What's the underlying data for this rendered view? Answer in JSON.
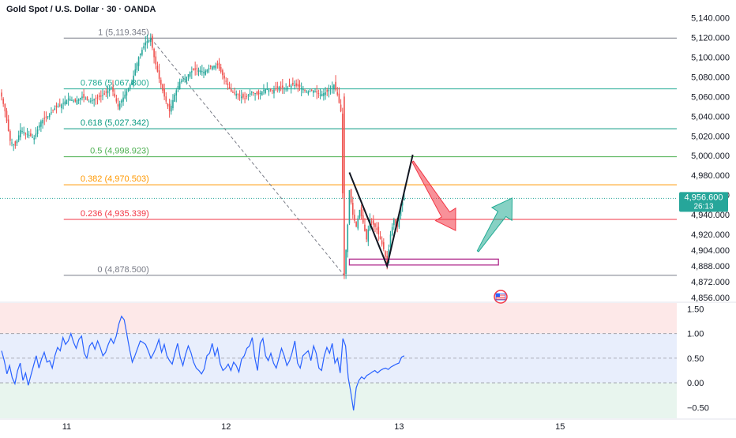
{
  "title": "Gold Spot / U.S. Dollar · 30 · OANDA",
  "colors": {
    "up": "#26a69a",
    "down": "#ef5350",
    "price_label_bg": "#26a69a",
    "rsi_line": "#2962ff",
    "rsi_band": "#e8eefc",
    "rsi_overbought": "#fde8e8",
    "rsi_oversold": "#e8f5ee"
  },
  "price_label": {
    "price": "4,956.600",
    "countdown": "26:13",
    "value": 4956.6
  },
  "fib_levels": [
    {
      "ratio": 1,
      "label": "1 (5,119.345)",
      "price": 5119.345,
      "color": "#787b86"
    },
    {
      "ratio": 0.786,
      "label": "0.786 (5,067.800)",
      "price": 5067.8,
      "color": "#22ab94"
    },
    {
      "ratio": 0.618,
      "label": "0.618 (5,027.342)",
      "price": 5027.342,
      "color": "#089981"
    },
    {
      "ratio": 0.5,
      "label": "0.5 (4,998.923)",
      "price": 4998.923,
      "color": "#4caf50"
    },
    {
      "ratio": 0.382,
      "label": "0.382 (4,970.503)",
      "price": 4970.503,
      "color": "#ff9800"
    },
    {
      "ratio": 0.236,
      "label": "0.236 (4,935.339)",
      "price": 4935.339,
      "color": "#f23645"
    },
    {
      "ratio": 0,
      "label": "0 (4,878.500)",
      "price": 4878.5,
      "color": "#787b86"
    }
  ],
  "chart_data": {
    "type": "candlestick",
    "title": "Gold Spot / U.S. Dollar · 30 · OANDA",
    "price_axis": {
      "ticks": [
        "5,140.000",
        "5,120.000",
        "5,100.000",
        "5,080.000",
        "5,060.000",
        "5,040.000",
        "5,020.000",
        "5,000.000",
        "4,980.000",
        "4,960.000",
        "4,940.000",
        "4,920.000",
        "4,904.000",
        "4,888.000",
        "4,872.000",
        "4,856.000"
      ],
      "tick_values": [
        5140,
        5120,
        5100,
        5080,
        5060,
        5040,
        5020,
        5000,
        4980,
        4960,
        4940,
        4920,
        4904,
        4888,
        4872,
        4856
      ],
      "range": [
        4852,
        5150
      ]
    },
    "rsi_axis": {
      "ticks": [
        "1.50",
        "1.00",
        "0.50",
        "0.00",
        "−0.50"
      ],
      "tick_values": [
        1.5,
        1.0,
        0.5,
        0.0,
        -0.5
      ],
      "range": [
        -0.72,
        1.62
      ],
      "band_upper": 1.0,
      "band_lower": 0.0,
      "mid": 0.5
    },
    "time_axis": {
      "labels": [
        "11",
        "12",
        "13",
        "15"
      ],
      "bar_index": [
        38,
        131,
        232,
        326
      ]
    },
    "bar_count": 240,
    "segments": [
      [
        0,
        5060
      ],
      [
        2,
        5045
      ],
      [
        5,
        5015
      ],
      [
        8,
        5010
      ],
      [
        11,
        5026
      ],
      [
        15,
        5022
      ],
      [
        19,
        5018
      ],
      [
        23,
        5035
      ],
      [
        27,
        5040
      ],
      [
        31,
        5048
      ],
      [
        35,
        5052
      ],
      [
        39,
        5058
      ],
      [
        43,
        5055
      ],
      [
        47,
        5060
      ],
      [
        51,
        5055
      ],
      [
        55,
        5058
      ],
      [
        60,
        5062
      ],
      [
        64,
        5070
      ],
      [
        68,
        5050
      ],
      [
        72,
        5062
      ],
      [
        76,
        5075
      ],
      [
        80,
        5100
      ],
      [
        84,
        5115
      ],
      [
        87,
        5119
      ],
      [
        89,
        5100
      ],
      [
        92,
        5078
      ],
      [
        95,
        5060
      ],
      [
        98,
        5045
      ],
      [
        101,
        5062
      ],
      [
        104,
        5075
      ],
      [
        107,
        5078
      ],
      [
        110,
        5085
      ],
      [
        114,
        5088
      ],
      [
        118,
        5085
      ],
      [
        122,
        5090
      ],
      [
        126,
        5092
      ],
      [
        128,
        5085
      ],
      [
        131,
        5075
      ],
      [
        134,
        5065
      ],
      [
        138,
        5062
      ],
      [
        142,
        5058
      ],
      [
        146,
        5065
      ],
      [
        150,
        5062
      ],
      [
        154,
        5068
      ],
      [
        158,
        5066
      ],
      [
        162,
        5070
      ],
      [
        166,
        5068
      ],
      [
        170,
        5072
      ],
      [
        174,
        5070
      ],
      [
        178,
        5065
      ],
      [
        182,
        5066
      ],
      [
        186,
        5062
      ],
      [
        190,
        5065
      ],
      [
        194,
        5072
      ],
      [
        196,
        5062
      ],
      [
        198,
        5045
      ],
      [
        200,
        4878.5
      ],
      [
        202,
        4930
      ],
      [
        203,
        4965
      ],
      [
        205,
        4940
      ],
      [
        207,
        4928
      ],
      [
        209,
        4945
      ],
      [
        211,
        4932
      ],
      [
        213,
        4915
      ],
      [
        215,
        4935
      ],
      [
        217,
        4930
      ],
      [
        219,
        4925
      ],
      [
        221,
        4915
      ],
      [
        223,
        4905
      ],
      [
        225,
        4890
      ],
      [
        227,
        4920
      ],
      [
        229,
        4935
      ],
      [
        231,
        4928
      ],
      [
        233,
        4950
      ],
      [
        235,
        4956.6
      ]
    ],
    "rsi_values": [
      0.65,
      0.45,
      0.18,
      0.35,
      0.1,
      -0.02,
      0.25,
      0.4,
      0.05,
      0.2,
      -0.05,
      0.15,
      0.35,
      0.55,
      0.3,
      0.48,
      0.62,
      0.42,
      0.45,
      0.3,
      0.55,
      0.72,
      0.65,
      0.92,
      0.78,
      0.85,
      1.0,
      0.82,
      0.7,
      0.88,
      0.95,
      0.6,
      0.5,
      0.75,
      0.82,
      0.68,
      0.85,
      0.72,
      0.55,
      0.62,
      0.78,
      0.9,
      0.8,
      0.95,
      1.2,
      1.35,
      1.28,
      0.98,
      0.68,
      0.42,
      0.55,
      0.7,
      0.85,
      0.82,
      0.78,
      0.65,
      0.5,
      0.6,
      0.72,
      0.88,
      0.62,
      0.78,
      0.55,
      0.45,
      0.38,
      0.6,
      0.8,
      0.52,
      0.35,
      0.58,
      0.75,
      0.62,
      0.42,
      0.3,
      0.25,
      0.18,
      0.28,
      0.55,
      0.6,
      0.8,
      0.55,
      0.7,
      0.38,
      0.25,
      0.3,
      0.38,
      0.25,
      0.42,
      0.35,
      0.22,
      0.48,
      0.55,
      0.7,
      0.75,
      0.92,
      0.5,
      0.25,
      0.8,
      0.9,
      0.55,
      0.45,
      0.6,
      0.4,
      0.3,
      0.5,
      0.7,
      0.55,
      0.35,
      0.45,
      0.62,
      0.85,
      0.4,
      0.3,
      0.55,
      0.6,
      0.65,
      0.45,
      0.75,
      0.6,
      0.3,
      0.25,
      0.55,
      0.72,
      0.6,
      0.8,
      0.4,
      0.5,
      0.2,
      0.9,
      0.75,
      0.1,
      -0.2,
      -0.56,
      -0.1,
      0.05,
      0.12,
      0.08,
      0.15,
      0.18,
      0.22,
      0.25,
      0.2,
      0.25,
      0.28,
      0.3,
      0.27,
      0.32,
      0.35,
      0.38,
      0.4,
      0.52,
      0.55
    ],
    "rsi_x_start": 0,
    "rsi_x_end": 235,
    "annotations": {
      "fib_anchor_high": {
        "bar": 87,
        "price": 5119.345
      },
      "fib_anchor_low": {
        "bar": 200,
        "price": 4878.5
      },
      "zigzag": [
        [
          203,
          4983
        ],
        [
          225,
          4888
        ],
        [
          240,
          5001
        ]
      ],
      "box": {
        "bar_start": 203,
        "bar_end": 290,
        "price_top": 4895,
        "price_bottom": 4889
      },
      "red_arrow": {
        "from": [
          240,
          4994
        ],
        "to": [
          265,
          4924
        ]
      },
      "green_arrow": {
        "from": [
          278,
          4903
        ],
        "to": [
          298,
          4957
        ]
      }
    }
  }
}
